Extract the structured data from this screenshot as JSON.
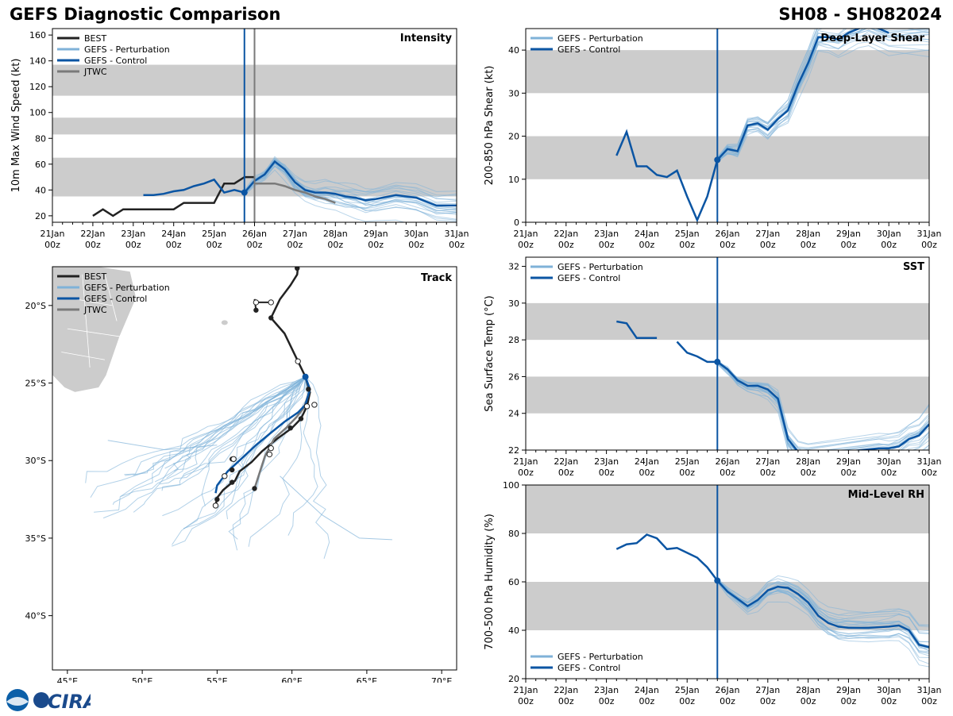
{
  "header": {
    "title": "GEFS Diagnostic Comparison",
    "storm_id": "SH08 - SH082024"
  },
  "colors": {
    "best": "#222222",
    "perturbation": "#7fb2d8",
    "control": "#0b55a3",
    "jtwc": "#7a7a7a",
    "band": "#cccccc"
  },
  "logo": {
    "text": "CIRA"
  },
  "time_axis": {
    "labels": [
      [
        "21Jan",
        "00z"
      ],
      [
        "22Jan",
        "00z"
      ],
      [
        "23Jan",
        "00z"
      ],
      [
        "24Jan",
        "00z"
      ],
      [
        "25Jan",
        "00z"
      ],
      [
        "26Jan",
        "00z"
      ],
      [
        "27Jan",
        "00z"
      ],
      [
        "28Jan",
        "00z"
      ],
      [
        "29Jan",
        "00z"
      ],
      [
        "30Jan",
        "00z"
      ],
      [
        "31Jan",
        "00z"
      ]
    ],
    "init_time": 4.75
  },
  "chart_data": [
    {
      "id": "intensity",
      "type": "line",
      "title": "Intensity",
      "xlabel": "",
      "ylabel": "10m Max Wind Speed (kt)",
      "xlim": [
        0,
        10
      ],
      "ylim": [
        15,
        165
      ],
      "yticks": [
        20,
        40,
        60,
        80,
        100,
        120,
        140,
        160
      ],
      "bands": [
        [
          35,
          65
        ],
        [
          83,
          96
        ],
        [
          113,
          137
        ]
      ],
      "legend": [
        "BEST",
        "GEFS - Perturbation",
        "GEFS - Control",
        "JTWC"
      ],
      "jtwc_time": 5.0,
      "series": [
        {
          "name": "BEST",
          "x": [
            1,
            1.25,
            1.5,
            1.75,
            2,
            2.5,
            3,
            3.25,
            3.5,
            4,
            4.25,
            4.5,
            4.75,
            5
          ],
          "y": [
            20,
            25,
            20,
            25,
            25,
            25,
            25,
            30,
            30,
            30,
            45,
            45,
            50,
            50
          ]
        },
        {
          "name": "GEFS - Control",
          "x": [
            2.25,
            2.5,
            2.75,
            3,
            3.25,
            3.5,
            3.75,
            4,
            4.25,
            4.5,
            4.75,
            5,
            5.25,
            5.5,
            5.75,
            6,
            6.25,
            6.5,
            6.75,
            7,
            7.25,
            7.5,
            7.75,
            8,
            8.5,
            9,
            9.5,
            10
          ],
          "y": [
            36,
            36,
            37,
            39,
            40,
            43,
            45,
            48,
            38,
            40,
            38,
            47,
            52,
            62,
            56,
            46,
            40,
            38,
            38,
            37,
            35,
            34,
            32,
            33,
            36,
            34,
            28,
            28
          ]
        },
        {
          "name": "JTWC",
          "x": [
            5,
            5.25,
            5.5,
            5.75,
            6,
            6.25,
            6.5,
            6.75,
            7
          ],
          "y": [
            45,
            45,
            45,
            43,
            40,
            38,
            35,
            33,
            30
          ]
        }
      ]
    },
    {
      "id": "shear",
      "type": "line",
      "title": "Deep-Layer Shear",
      "xlabel": "",
      "ylabel": "200-850 hPa Shear (kt)",
      "xlim": [
        0,
        10
      ],
      "ylim": [
        0,
        45
      ],
      "yticks": [
        0,
        10,
        20,
        30,
        40
      ],
      "bands": [
        [
          10,
          20
        ],
        [
          30,
          40
        ]
      ],
      "legend": [
        "GEFS - Perturbation",
        "GEFS - Control"
      ],
      "series": [
        {
          "name": "GEFS - Control",
          "x": [
            2.25,
            2.5,
            2.75,
            3,
            3.25,
            3.5,
            3.75,
            4,
            4.25,
            4.5,
            4.75,
            5,
            5.25,
            5.5,
            5.75,
            6,
            6.25,
            6.5,
            6.75,
            7,
            7.25,
            7.5,
            7.75,
            8,
            8.25,
            8.5,
            9
          ],
          "y": [
            15.5,
            21,
            13,
            13,
            11,
            10.5,
            12,
            6,
            0.5,
            6,
            14.5,
            17,
            16.5,
            22.5,
            23,
            21.5,
            24,
            26,
            32,
            37,
            43,
            43,
            42.5,
            44,
            45,
            46,
            44
          ]
        }
      ]
    },
    {
      "id": "sst",
      "type": "line",
      "title": "SST",
      "xlabel": "",
      "ylabel": "Sea Surface Temp (°C)",
      "xlim": [
        0,
        10
      ],
      "ylim": [
        22,
        32.5
      ],
      "yticks": [
        22,
        24,
        26,
        28,
        30,
        32
      ],
      "bands": [
        [
          24,
          26
        ],
        [
          28,
          30
        ]
      ],
      "legend": [
        "GEFS - Perturbation",
        "GEFS - Control"
      ],
      "series": [
        {
          "name": "GEFS - Control",
          "x": [
            2.25,
            2.5,
            2.75,
            3,
            3.25,
            null,
            3.75,
            4,
            4.25,
            4.5,
            4.75,
            5,
            5.25,
            5.5,
            5.75,
            6,
            6.25,
            6.5,
            6.75,
            7,
            8.75,
            9,
            9.25,
            9.5,
            9.75,
            10
          ],
          "y": [
            29,
            28.9,
            28.1,
            28.1,
            28.1,
            null,
            27.9,
            27.3,
            27.1,
            26.8,
            26.8,
            26.4,
            25.8,
            25.5,
            25.5,
            25.3,
            24.8,
            22.6,
            21.9,
            21.7,
            22.1,
            22.1,
            22.2,
            22.6,
            22.8,
            23.4
          ]
        }
      ]
    },
    {
      "id": "rh",
      "type": "line",
      "title": "Mid-Level RH",
      "xlabel": "",
      "ylabel": "700-500 hPa Humidity (%)",
      "xlim": [
        0,
        10
      ],
      "ylim": [
        20,
        100
      ],
      "yticks": [
        20,
        40,
        60,
        80,
        100
      ],
      "bands": [
        [
          40,
          60
        ],
        [
          80,
          100
        ]
      ],
      "legend": [
        "GEFS - Perturbation",
        "GEFS - Control"
      ],
      "series": [
        {
          "name": "GEFS - Control",
          "x": [
            2.25,
            2.5,
            2.75,
            3,
            3.25,
            3.5,
            3.75,
            4,
            4.25,
            4.5,
            4.75,
            5,
            5.25,
            5.5,
            5.75,
            6,
            6.25,
            6.5,
            6.75,
            7,
            7.25,
            7.5,
            7.75,
            8,
            8.5,
            9,
            9.25,
            9.5,
            9.75,
            10
          ],
          "y": [
            73.5,
            75.5,
            76,
            79.5,
            78,
            73.5,
            74,
            72,
            70,
            66,
            60.5,
            56,
            53,
            50,
            52.5,
            56.5,
            58,
            57.5,
            55,
            51.5,
            46,
            43,
            41.5,
            41,
            41,
            41.5,
            42,
            40,
            34,
            33
          ]
        }
      ]
    },
    {
      "id": "track",
      "type": "scatter",
      "title": "Track",
      "xlabel": "",
      "ylabel": "",
      "xlim": [
        44,
        71
      ],
      "ylim": [
        -43.5,
        -17.5
      ],
      "xtick_labels": [
        [
          45,
          "45°E"
        ],
        [
          50,
          "50°E"
        ],
        [
          55,
          "55°E"
        ],
        [
          60,
          "60°E"
        ],
        [
          65,
          "65°E"
        ],
        [
          70,
          "70°E"
        ]
      ],
      "ytick_labels": [
        [
          -20,
          "20°S"
        ],
        [
          -25,
          "25°S"
        ],
        [
          -30,
          "30°S"
        ],
        [
          -35,
          "35°S"
        ],
        [
          -40,
          "40°S"
        ]
      ],
      "legend": [
        "BEST",
        "GEFS - Perturbation",
        "GEFS - Control",
        "JTWC"
      ],
      "best_track": [
        [
          60.4,
          -17.5
        ],
        [
          60.35,
          -18.0
        ],
        [
          59.9,
          -18.7
        ],
        [
          59.2,
          -19.6
        ],
        [
          58.6,
          -20.8
        ],
        [
          59.5,
          -21.8
        ],
        [
          60.4,
          -23.6
        ],
        [
          60.9,
          -24.6
        ],
        [
          61.2,
          -25.6
        ],
        [
          61.0,
          -26.5
        ],
        [
          60.6,
          -27.3
        ],
        [
          60.0,
          -27.9
        ],
        [
          59.0,
          -28.6
        ],
        [
          58.0,
          -29.4
        ],
        [
          57.3,
          -30.1
        ],
        [
          56.5,
          -30.7
        ],
        [
          56.2,
          -31.3
        ],
        [
          55.9,
          -31.5
        ],
        [
          55.4,
          -31.9
        ],
        [
          55.0,
          -32.4
        ],
        [
          54.9,
          -32.9
        ]
      ],
      "best_track_extra": [
        [
          57.6,
          -20.3
        ],
        [
          57.5,
          -19.6
        ],
        [
          57.6,
          -19.8
        ],
        [
          58.6,
          -19.8
        ]
      ],
      "best_markers_filled": [
        [
          60.35,
          -17.6
        ],
        [
          58.6,
          -20.8
        ],
        [
          57.6,
          -20.3
        ],
        [
          60.9,
          -24.6
        ],
        [
          61.1,
          -25.4
        ],
        [
          60.6,
          -27.3
        ],
        [
          59.9,
          -27.9
        ],
        [
          57.5,
          -31.8
        ],
        [
          56.0,
          -30.6
        ],
        [
          56.0,
          -31.4
        ],
        [
          55.0,
          -32.5
        ],
        [
          56.0,
          -29.9
        ]
      ],
      "best_markers_open": [
        [
          57.6,
          -19.8
        ],
        [
          58.6,
          -19.8
        ],
        [
          60.4,
          -23.6
        ],
        [
          61.5,
          -26.4
        ],
        [
          61.0,
          -26.5
        ],
        [
          58.6,
          -29.2
        ],
        [
          58.5,
          -29.6
        ],
        [
          56.1,
          -29.9
        ],
        [
          55.5,
          -31.0
        ],
        [
          54.9,
          -32.9
        ]
      ],
      "control_track": [
        [
          60.9,
          -24.6
        ],
        [
          61.2,
          -25.4
        ],
        [
          60.9,
          -26.4
        ],
        [
          60.4,
          -26.9
        ],
        [
          59.5,
          -27.5
        ],
        [
          58.6,
          -28.2
        ],
        [
          57.6,
          -29.0
        ],
        [
          56.6,
          -29.9
        ],
        [
          55.7,
          -30.7
        ],
        [
          55.0,
          -31.6
        ],
        [
          54.9,
          -32.1
        ]
      ],
      "control_start": [
        60.9,
        -24.6
      ],
      "jtwc_track": [
        [
          61.2,
          -25.4
        ],
        [
          60.8,
          -26.6
        ],
        [
          60.3,
          -27.2
        ],
        [
          59.6,
          -27.9
        ],
        [
          58.8,
          -28.6
        ],
        [
          58.2,
          -29.7
        ],
        [
          57.9,
          -30.6
        ],
        [
          57.5,
          -31.8
        ]
      ]
    }
  ]
}
